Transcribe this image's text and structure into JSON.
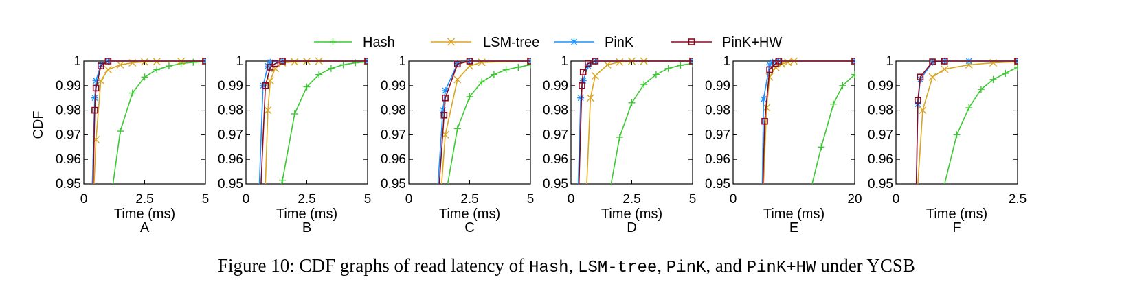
{
  "legend": [
    {
      "name": "Hash",
      "color": "#3cc832",
      "marker": "plus"
    },
    {
      "name": "LSM-tree",
      "color": "#daa520",
      "marker": "cross"
    },
    {
      "name": "PinK",
      "color": "#1e90ff",
      "marker": "star"
    },
    {
      "name": "PinK+HW",
      "color": "#8b0a1e",
      "marker": "square"
    }
  ],
  "ylabel": "CDF",
  "chart_data": [
    {
      "type": "line",
      "panel": "A",
      "xlabel": "Time (ms)",
      "xlim": [
        0,
        5
      ],
      "ylim": [
        0.95,
        1
      ],
      "xticks": [
        "0",
        "2.5",
        "5"
      ],
      "yticks": [
        "0.95",
        "0.96",
        "0.97",
        "0.98",
        "0.99",
        "1"
      ],
      "series": [
        {
          "name": "Hash",
          "x": [
            1.2,
            1.5,
            2.0,
            2.5,
            3.0,
            3.5,
            4.0,
            4.5,
            5.0
          ],
          "y": [
            0.95,
            0.9715,
            0.987,
            0.9935,
            0.9965,
            0.998,
            0.999,
            0.9995,
            0.9998
          ]
        },
        {
          "name": "LSM-tree",
          "x": [
            0.42,
            0.5,
            0.7,
            1.0,
            1.5,
            2.0,
            2.5,
            3.0,
            4.0,
            5.0
          ],
          "y": [
            0.95,
            0.968,
            0.992,
            0.9965,
            0.9985,
            0.9993,
            0.9997,
            0.9998,
            0.9999,
            1.0
          ]
        },
        {
          "name": "PinK",
          "x": [
            0.35,
            0.45,
            0.5,
            0.7,
            1.0,
            5.0
          ],
          "y": [
            0.95,
            0.985,
            0.992,
            0.9985,
            1.0,
            1.0
          ]
        },
        {
          "name": "PinK+HW",
          "x": [
            0.38,
            0.45,
            0.5,
            0.7,
            1.0,
            5.0
          ],
          "y": [
            0.95,
            0.98,
            0.989,
            0.998,
            1.0,
            1.0
          ]
        }
      ]
    },
    {
      "type": "line",
      "panel": "B",
      "xlabel": "Time (ms)",
      "xlim": [
        0,
        5
      ],
      "ylim": [
        0.95,
        1
      ],
      "xticks": [
        "0",
        "2.5",
        "5"
      ],
      "yticks": [
        "0.95",
        "0.96",
        "0.97",
        "0.98",
        "0.99",
        "1"
      ],
      "series": [
        {
          "name": "Hash",
          "x": [
            1.45,
            1.5,
            2.0,
            2.5,
            3.0,
            3.5,
            4.0,
            4.5,
            5.0
          ],
          "y": [
            0.95,
            0.9515,
            0.9785,
            0.9895,
            0.9945,
            0.997,
            0.9985,
            0.9993,
            0.9997
          ]
        },
        {
          "name": "LSM-tree",
          "x": [
            0.8,
            0.9,
            1.0,
            1.2,
            1.5,
            2.0,
            2.5,
            3.0,
            5.0
          ],
          "y": [
            0.95,
            0.98,
            0.992,
            0.997,
            0.9993,
            0.9997,
            0.9999,
            1.0,
            1.0
          ]
        },
        {
          "name": "PinK",
          "x": [
            0.55,
            0.7,
            0.9,
            1.0,
            1.5,
            5.0
          ],
          "y": [
            0.95,
            0.99,
            0.998,
            0.9995,
            1.0,
            1.0
          ]
        },
        {
          "name": "PinK+HW",
          "x": [
            0.62,
            0.8,
            1.0,
            1.2,
            1.5,
            5.0
          ],
          "y": [
            0.95,
            0.99,
            0.9975,
            0.999,
            1.0,
            1.0
          ]
        }
      ]
    },
    {
      "type": "line",
      "panel": "C",
      "xlabel": "Time (ms)",
      "xlim": [
        0,
        5
      ],
      "ylim": [
        0.95,
        1
      ],
      "xticks": [
        "0",
        "2.5",
        "5"
      ],
      "yticks": [
        "0.95",
        "0.96",
        "0.97",
        "0.98",
        "0.99",
        "1"
      ],
      "series": [
        {
          "name": "Hash",
          "x": [
            1.6,
            2.0,
            2.5,
            3.0,
            3.5,
            4.0,
            4.5,
            5.0
          ],
          "y": [
            0.95,
            0.9725,
            0.9855,
            0.9915,
            0.9945,
            0.9965,
            0.9975,
            0.9985
          ]
        },
        {
          "name": "LSM-tree",
          "x": [
            1.35,
            1.5,
            2.0,
            2.5,
            3.0,
            5.0
          ],
          "y": [
            0.95,
            0.97,
            0.9925,
            0.998,
            0.9995,
            1.0
          ]
        },
        {
          "name": "PinK",
          "x": [
            1.2,
            1.4,
            1.5,
            2.0,
            2.5,
            5.0
          ],
          "y": [
            0.95,
            0.98,
            0.988,
            0.999,
            1.0,
            1.0
          ]
        },
        {
          "name": "PinK+HW",
          "x": [
            1.25,
            1.45,
            1.5,
            2.0,
            2.5,
            5.0
          ],
          "y": [
            0.95,
            0.978,
            0.985,
            0.9988,
            1.0,
            1.0
          ]
        }
      ]
    },
    {
      "type": "line",
      "panel": "D",
      "xlabel": "Time (ms)",
      "xlim": [
        0,
        5
      ],
      "ylim": [
        0.95,
        1
      ],
      "xticks": [
        "0",
        "2.5",
        "5"
      ],
      "yticks": [
        "0.95",
        "0.96",
        "0.97",
        "0.98",
        "0.99",
        "1"
      ],
      "series": [
        {
          "name": "Hash",
          "x": [
            1.65,
            2.0,
            2.5,
            3.0,
            3.5,
            4.0,
            4.5,
            5.0
          ],
          "y": [
            0.95,
            0.969,
            0.983,
            0.9905,
            0.9945,
            0.997,
            0.9983,
            0.999
          ]
        },
        {
          "name": "LSM-tree",
          "x": [
            0.65,
            0.8,
            1.0,
            1.5,
            2.0,
            2.5,
            3.0,
            5.0
          ],
          "y": [
            0.95,
            0.985,
            0.994,
            0.9985,
            0.9996,
            1.0,
            1.0,
            1.0
          ]
        },
        {
          "name": "PinK",
          "x": [
            0.3,
            0.4,
            0.5,
            0.7,
            1.0,
            5.0
          ],
          "y": [
            0.95,
            0.985,
            0.992,
            0.998,
            1.0,
            1.0
          ]
        },
        {
          "name": "PinK+HW",
          "x": [
            0.33,
            0.45,
            0.5,
            0.7,
            1.0,
            5.0
          ],
          "y": [
            0.95,
            0.99,
            0.9955,
            0.999,
            1.0,
            1.0
          ]
        }
      ]
    },
    {
      "type": "line",
      "panel": "E",
      "xlabel": "Time (ms)",
      "xlim": [
        0,
        20
      ],
      "ylim": [
        0.95,
        1
      ],
      "xticks": [
        "0",
        "20"
      ],
      "yticks": [
        "0.95",
        "0.96",
        "0.97",
        "0.98",
        "0.99",
        "1"
      ],
      "series": [
        {
          "name": "Hash",
          "x": [
            13.0,
            14.5,
            16.5,
            18.0,
            20.0
          ],
          "y": [
            0.95,
            0.965,
            0.9825,
            0.99,
            0.9945
          ]
        },
        {
          "name": "LSM-tree",
          "x": [
            5.0,
            5.5,
            6.0,
            7.0,
            8.0,
            9.0,
            10.0,
            20.0
          ],
          "y": [
            0.95,
            0.981,
            0.9935,
            0.9975,
            0.9988,
            0.9995,
            1.0,
            1.0
          ]
        },
        {
          "name": "PinK",
          "x": [
            4.8,
            5.0,
            6.0,
            6.5,
            7.5,
            20.0
          ],
          "y": [
            0.95,
            0.9845,
            0.9985,
            0.9995,
            1.0,
            1.0
          ]
        },
        {
          "name": "PinK+HW",
          "x": [
            4.9,
            5.2,
            6.0,
            7.0,
            7.5,
            20.0
          ],
          "y": [
            0.95,
            0.9755,
            0.9965,
            0.999,
            1.0,
            1.0
          ]
        }
      ]
    },
    {
      "type": "line",
      "panel": "F",
      "xlabel": "Time (ms)",
      "xlim": [
        0,
        2.5
      ],
      "ylim": [
        0.95,
        1
      ],
      "xticks": [
        "0",
        "2.5"
      ],
      "yticks": [
        "0.95",
        "0.96",
        "0.97",
        "0.98",
        "0.99",
        "1"
      ],
      "series": [
        {
          "name": "Hash",
          "x": [
            1.0,
            1.25,
            1.5,
            1.75,
            2.0,
            2.25,
            2.5
          ],
          "y": [
            0.95,
            0.97,
            0.981,
            0.9885,
            0.9925,
            0.995,
            0.9975
          ]
        },
        {
          "name": "LSM-tree",
          "x": [
            0.45,
            0.55,
            0.75,
            1.0,
            1.5,
            2.0,
            2.5
          ],
          "y": [
            0.95,
            0.98,
            0.9935,
            0.9967,
            0.9985,
            0.9993,
            0.9997
          ]
        },
        {
          "name": "PinK",
          "x": [
            0.42,
            0.45,
            0.5,
            0.75,
            1.0,
            1.5,
            2.5
          ],
          "y": [
            0.95,
            0.9825,
            0.9925,
            0.9995,
            1.0,
            1.0,
            1.0
          ]
        },
        {
          "name": "PinK+HW",
          "x": [
            0.42,
            0.45,
            0.5,
            0.75,
            1.0,
            2.5
          ],
          "y": [
            0.95,
            0.984,
            0.9935,
            0.9997,
            1.0,
            1.0
          ]
        }
      ]
    }
  ],
  "caption": {
    "prefix": "Figure 10: CDF graphs of read latency of ",
    "hash": "Hash",
    "sep1": ", ",
    "lsm": "LSM-tree",
    "sep2": ", ",
    "pink": "PinK",
    "sep3": ", and ",
    "pinkhw": "PinK+HW",
    "suffix": " under YCSB"
  }
}
